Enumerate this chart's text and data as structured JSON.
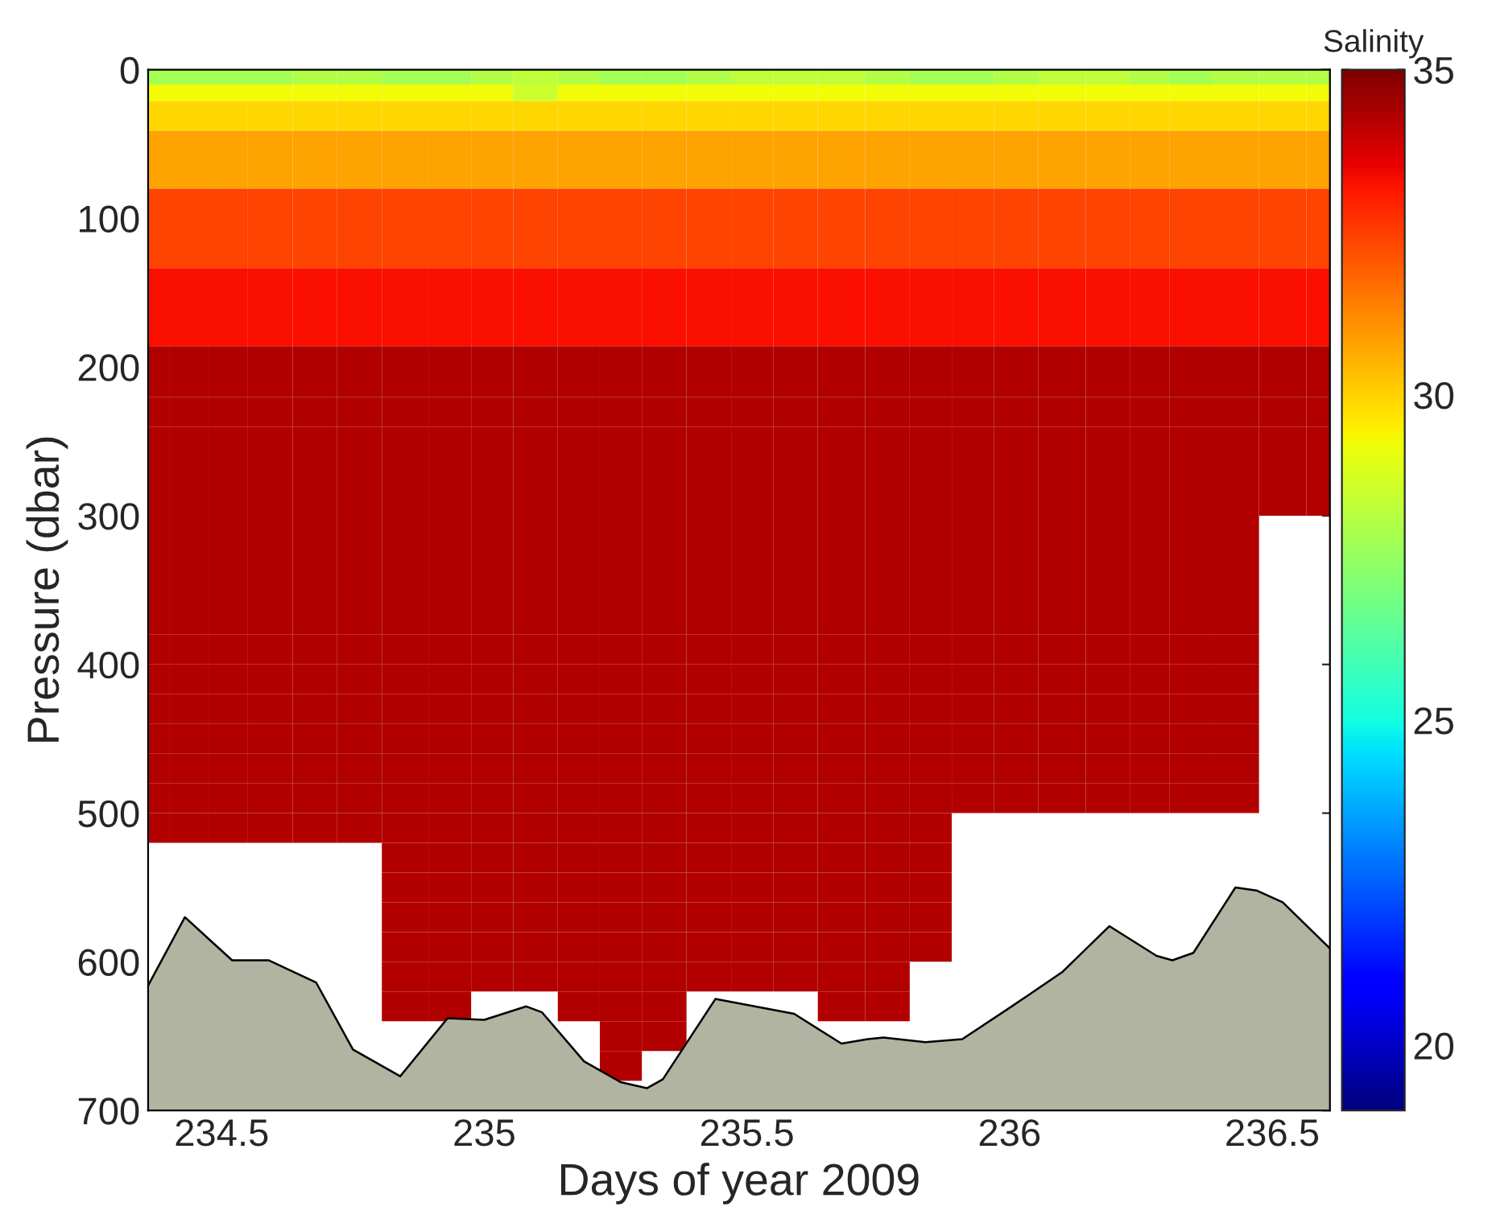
{
  "chart_data": {
    "type": "heatmap",
    "xlabel": "Days of year 2009",
    "ylabel": "Pressure (dbar)",
    "clabel": "Salinity",
    "x": [
      234.36,
      234.44,
      234.51,
      234.59,
      234.68,
      234.76,
      234.85,
      234.94,
      235.01,
      235.1,
      235.18,
      235.26,
      235.34,
      235.43,
      235.51,
      235.59,
      235.68,
      235.77,
      235.85,
      235.93,
      236.01,
      236.1,
      236.19,
      236.27,
      236.34,
      236.43,
      236.52,
      236.61
    ],
    "y": [
      5,
      15,
      27,
      55,
      105,
      162,
      210,
      230,
      250,
      270,
      290,
      310,
      330,
      350,
      370,
      390,
      410,
      430,
      450,
      470,
      490,
      510,
      530,
      550,
      570,
      590,
      610,
      630,
      650,
      670
    ],
    "cells": [
      [
        27.8,
        27.8,
        27.8,
        27.8,
        28.0,
        28.0,
        27.8,
        27.8,
        28.0,
        28.3,
        28.0,
        27.8,
        27.8,
        28.0,
        28.3,
        28.3,
        28.3,
        28.0,
        27.8,
        27.8,
        28.0,
        28.3,
        28.3,
        28.0,
        27.8,
        28.0,
        28.0,
        28.0
      ],
      [
        29.3,
        29.3,
        29.3,
        29.3,
        29.3,
        29.3,
        29.3,
        29.3,
        29.3,
        28.5,
        29.3,
        29.3,
        29.3,
        29.3,
        29.3,
        29.3,
        29.3,
        29.3,
        29.3,
        29.3,
        29.3,
        29.3,
        29.3,
        29.3,
        29.3,
        29.3,
        29.3,
        29.3
      ],
      [
        29.9,
        29.9,
        29.9,
        29.9,
        29.9,
        29.9,
        29.9,
        29.9,
        29.9,
        29.9,
        29.9,
        29.9,
        29.9,
        29.9,
        29.9,
        29.9,
        29.9,
        29.9,
        29.9,
        29.9,
        29.9,
        29.9,
        29.9,
        29.9,
        29.9,
        29.9,
        29.9,
        29.9
      ],
      [
        30.8,
        30.8,
        30.8,
        30.8,
        30.8,
        30.8,
        30.8,
        30.8,
        30.8,
        30.8,
        30.8,
        30.8,
        30.8,
        30.8,
        30.8,
        30.8,
        30.8,
        30.8,
        30.8,
        30.8,
        30.8,
        30.8,
        30.8,
        30.8,
        30.8,
        30.8,
        30.8,
        30.8
      ],
      [
        32.4,
        32.4,
        32.4,
        32.4,
        32.4,
        32.4,
        32.4,
        32.4,
        32.4,
        32.4,
        32.4,
        32.4,
        32.4,
        32.4,
        32.4,
        32.4,
        32.4,
        32.4,
        32.4,
        32.4,
        32.4,
        32.4,
        32.4,
        32.4,
        32.4,
        32.4,
        32.4,
        32.4
      ],
      [
        33.3,
        33.3,
        33.3,
        33.3,
        33.3,
        33.3,
        33.3,
        33.3,
        33.3,
        33.3,
        33.3,
        33.3,
        33.3,
        33.3,
        33.3,
        33.3,
        33.3,
        33.3,
        33.3,
        33.3,
        33.3,
        33.3,
        33.3,
        33.3,
        33.3,
        33.3,
        33.3,
        33.3
      ],
      [
        34.3,
        34.3,
        34.3,
        34.3,
        34.3,
        34.3,
        34.3,
        34.3,
        34.3,
        34.3,
        34.3,
        34.3,
        34.3,
        34.3,
        34.3,
        34.3,
        34.3,
        34.3,
        34.3,
        34.3,
        34.3,
        34.3,
        34.3,
        34.3,
        34.3,
        34.3,
        34.3,
        34.3
      ],
      [
        34.3,
        34.3,
        34.3,
        34.3,
        34.3,
        34.3,
        34.3,
        34.3,
        34.3,
        34.3,
        34.3,
        34.3,
        34.3,
        34.3,
        34.3,
        34.3,
        34.3,
        34.3,
        34.3,
        34.3,
        34.3,
        34.3,
        34.3,
        34.3,
        34.3,
        34.3,
        34.3,
        34.3
      ],
      [
        34.3,
        34.3,
        34.3,
        34.3,
        34.3,
        34.3,
        34.3,
        34.3,
        34.3,
        34.3,
        34.3,
        34.3,
        34.3,
        34.3,
        34.3,
        34.3,
        34.3,
        34.3,
        34.3,
        34.3,
        34.3,
        34.3,
        34.3,
        34.3,
        34.3,
        34.3,
        34.3,
        34.3
      ],
      [
        34.3,
        34.3,
        34.3,
        34.3,
        34.3,
        34.3,
        34.3,
        34.3,
        34.3,
        34.3,
        34.3,
        34.3,
        34.3,
        34.3,
        34.3,
        34.3,
        34.3,
        34.3,
        34.3,
        34.3,
        34.3,
        34.3,
        34.3,
        34.3,
        34.3,
        34.3,
        34.3,
        34.3
      ],
      [
        34.3,
        34.3,
        34.3,
        34.3,
        34.3,
        34.3,
        34.3,
        34.3,
        34.3,
        34.3,
        34.3,
        34.3,
        34.3,
        34.3,
        34.3,
        34.3,
        34.3,
        34.3,
        34.3,
        34.3,
        34.3,
        34.3,
        34.3,
        34.3,
        34.3,
        34.3,
        34.3,
        34.3
      ],
      [
        34.3,
        34.3,
        34.3,
        34.3,
        34.3,
        34.3,
        34.3,
        34.3,
        34.3,
        34.3,
        34.3,
        34.3,
        34.3,
        34.3,
        34.3,
        34.3,
        34.3,
        34.3,
        34.3,
        34.3,
        34.3,
        34.3,
        34.3,
        34.3,
        34.3,
        34.3,
        null,
        null
      ],
      [
        34.3,
        34.3,
        34.3,
        34.3,
        34.3,
        34.3,
        34.3,
        34.3,
        34.3,
        34.3,
        34.3,
        34.3,
        34.3,
        34.3,
        34.3,
        34.3,
        34.3,
        34.3,
        34.3,
        34.3,
        34.3,
        34.3,
        34.3,
        34.3,
        34.3,
        34.3,
        null,
        null
      ],
      [
        34.3,
        34.3,
        34.3,
        34.3,
        34.3,
        34.3,
        34.3,
        34.3,
        34.3,
        34.3,
        34.3,
        34.3,
        34.3,
        34.3,
        34.3,
        34.3,
        34.3,
        34.3,
        34.3,
        34.3,
        34.3,
        34.3,
        34.3,
        34.3,
        34.3,
        34.3,
        null,
        null
      ],
      [
        34.3,
        34.3,
        34.3,
        34.3,
        34.3,
        34.3,
        34.3,
        34.3,
        34.3,
        34.3,
        34.3,
        34.3,
        34.3,
        34.3,
        34.3,
        34.3,
        34.3,
        34.3,
        34.3,
        34.3,
        34.3,
        34.3,
        34.3,
        34.3,
        34.3,
        34.3,
        null,
        null
      ],
      [
        34.3,
        34.3,
        34.3,
        34.3,
        34.3,
        34.3,
        34.3,
        34.3,
        34.3,
        34.3,
        34.3,
        34.3,
        34.3,
        34.3,
        34.3,
        34.3,
        34.3,
        34.3,
        34.3,
        34.3,
        34.3,
        34.3,
        34.3,
        34.3,
        34.3,
        34.3,
        null,
        null
      ],
      [
        34.3,
        34.3,
        34.3,
        34.3,
        34.3,
        34.3,
        34.3,
        34.3,
        34.3,
        34.3,
        34.3,
        34.3,
        34.3,
        34.3,
        34.3,
        34.3,
        34.3,
        34.3,
        34.3,
        34.3,
        34.3,
        34.3,
        34.3,
        34.3,
        34.3,
        34.3,
        null,
        null
      ],
      [
        34.3,
        34.3,
        34.3,
        34.3,
        34.3,
        34.3,
        34.3,
        34.3,
        34.3,
        34.3,
        34.3,
        34.3,
        34.3,
        34.3,
        34.3,
        34.3,
        34.3,
        34.3,
        34.3,
        34.3,
        34.3,
        34.3,
        34.3,
        34.3,
        34.3,
        34.3,
        null,
        null
      ],
      [
        34.3,
        34.3,
        34.3,
        34.3,
        34.3,
        34.3,
        34.3,
        34.3,
        34.3,
        34.3,
        34.3,
        34.3,
        34.3,
        34.3,
        34.3,
        34.3,
        34.3,
        34.3,
        34.3,
        34.3,
        34.3,
        34.3,
        34.3,
        34.3,
        34.3,
        34.3,
        null,
        null
      ],
      [
        34.3,
        34.3,
        34.3,
        34.3,
        34.3,
        34.3,
        34.3,
        34.3,
        34.3,
        34.3,
        34.3,
        34.3,
        34.3,
        34.3,
        34.3,
        34.3,
        34.3,
        34.3,
        34.3,
        34.3,
        34.3,
        34.3,
        34.3,
        34.3,
        34.3,
        34.3,
        null,
        null
      ],
      [
        34.3,
        34.3,
        34.3,
        34.3,
        34.3,
        34.3,
        34.3,
        34.3,
        34.3,
        34.3,
        34.3,
        34.3,
        34.3,
        34.3,
        34.3,
        34.3,
        34.3,
        34.3,
        34.3,
        34.3,
        34.3,
        34.3,
        34.3,
        34.3,
        34.3,
        34.3,
        null,
        null
      ],
      [
        34.3,
        34.3,
        34.3,
        34.3,
        34.3,
        34.3,
        34.3,
        34.3,
        34.3,
        34.3,
        34.3,
        34.3,
        34.3,
        34.3,
        34.3,
        34.3,
        34.3,
        34.3,
        34.3,
        null,
        null,
        null,
        null,
        null,
        null,
        null,
        null,
        null
      ],
      [
        null,
        null,
        null,
        null,
        null,
        null,
        34.3,
        34.3,
        34.3,
        34.3,
        34.3,
        34.3,
        34.3,
        34.3,
        34.3,
        34.3,
        34.3,
        34.3,
        34.3,
        null,
        null,
        null,
        null,
        null,
        null,
        null,
        null,
        null
      ],
      [
        null,
        null,
        null,
        null,
        null,
        null,
        34.3,
        34.3,
        34.3,
        34.3,
        34.3,
        34.3,
        34.3,
        34.3,
        34.3,
        34.3,
        34.3,
        34.3,
        34.3,
        null,
        null,
        null,
        null,
        null,
        null,
        null,
        null,
        null
      ],
      [
        null,
        null,
        null,
        null,
        null,
        null,
        34.3,
        34.3,
        34.3,
        34.3,
        34.3,
        34.3,
        34.3,
        34.3,
        34.3,
        34.3,
        34.3,
        34.3,
        34.3,
        null,
        null,
        null,
        null,
        null,
        null,
        null,
        null,
        null
      ],
      [
        null,
        null,
        null,
        null,
        null,
        null,
        34.3,
        34.3,
        34.3,
        34.3,
        34.3,
        34.3,
        34.3,
        34.3,
        34.3,
        34.3,
        34.3,
        34.3,
        34.3,
        null,
        null,
        null,
        null,
        null,
        null,
        null,
        null,
        null
      ],
      [
        null,
        null,
        null,
        null,
        null,
        null,
        34.3,
        34.3,
        34.3,
        34.3,
        34.3,
        34.3,
        34.3,
        34.3,
        34.3,
        34.3,
        34.3,
        34.3,
        null,
        null,
        null,
        null,
        null,
        null,
        null,
        null,
        null,
        null
      ],
      [
        null,
        null,
        null,
        null,
        null,
        null,
        34.3,
        34.3,
        null,
        null,
        34.3,
        34.3,
        34.3,
        null,
        null,
        null,
        34.3,
        34.3,
        null,
        null,
        null,
        null,
        null,
        null,
        null,
        null,
        null,
        null
      ],
      [
        null,
        null,
        null,
        null,
        null,
        null,
        null,
        null,
        null,
        null,
        null,
        34.3,
        34.3,
        null,
        null,
        null,
        null,
        null,
        null,
        null,
        null,
        null,
        null,
        null,
        null,
        null,
        null,
        null
      ],
      [
        null,
        null,
        null,
        null,
        null,
        null,
        null,
        null,
        null,
        null,
        null,
        34.3,
        null,
        null,
        null,
        null,
        null,
        null,
        null,
        null,
        null,
        null,
        null,
        null,
        null,
        null,
        null,
        null
      ]
    ],
    "clim": [
      19,
      35
    ],
    "cticks": [
      20,
      25,
      30,
      35
    ],
    "series": [
      {
        "type": "line",
        "color": "#000000",
        "x": [
          234.36,
          234.43,
          234.52,
          234.59,
          234.68,
          234.75,
          234.84,
          234.93,
          235.0,
          235.08,
          235.11,
          235.19,
          235.26,
          235.31,
          235.34,
          235.44,
          235.59,
          235.68,
          235.73,
          235.76,
          235.84,
          235.91,
          236.0,
          236.1,
          236.19,
          236.28,
          236.31,
          236.35,
          236.43,
          236.47,
          236.52,
          236.61
        ],
        "values": [
          616,
          570,
          599,
          599,
          614,
          659,
          677,
          638,
          639,
          630,
          634,
          667,
          681,
          685,
          679,
          625,
          635,
          655,
          652,
          651,
          654,
          652,
          631,
          607,
          576,
          596,
          599,
          594,
          550,
          552,
          560,
          591
        ]
      }
    ],
    "xlim": [
      234.36,
      236.61
    ],
    "xticks": [
      234.5,
      235,
      235.5,
      236,
      236.5
    ],
    "ylim": [
      700,
      0
    ],
    "yticks": [
      0,
      100,
      200,
      300,
      400,
      500,
      600,
      700
    ],
    "grid": false
  }
}
